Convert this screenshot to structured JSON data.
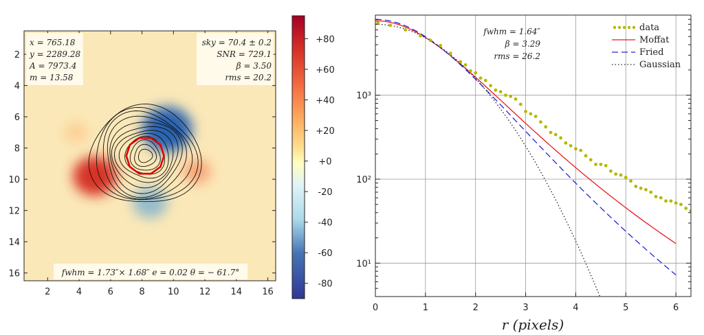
{
  "chart_data": [
    {
      "type": "heatmap",
      "x_ticks": [
        2,
        4,
        6,
        8,
        10,
        12,
        14,
        16
      ],
      "y_ticks": [
        2,
        4,
        6,
        8,
        10,
        12,
        14,
        16
      ],
      "xlim": [
        0.5,
        16.5
      ],
      "ylim": [
        16.5,
        0.5
      ],
      "colorbar": {
        "range": [
          -90,
          95
        ],
        "ticks": [
          80,
          60,
          40,
          20,
          0,
          -20,
          -40,
          -60,
          -80
        ],
        "tick_labels": [
          "+80",
          "+60",
          "+40",
          "+20",
          "+0",
          "-20",
          "-40",
          "-60",
          "-80"
        ],
        "colormap": "RdYlBu_r"
      },
      "residual_features": [
        {
          "x": 5.0,
          "y": 9.8,
          "value": 55
        },
        {
          "x": 9.6,
          "y": 6.8,
          "value": -70
        },
        {
          "x": 11.5,
          "y": 9.5,
          "value": 18
        },
        {
          "x": 8.5,
          "y": 11.5,
          "value": -35
        },
        {
          "x": 3.8,
          "y": 7.0,
          "value": 8
        }
      ],
      "contours": {
        "center_x": 8.2,
        "center_y": 8.5,
        "outer_radius": 3.3,
        "levels": 12,
        "highlight_radius": 1.2
      },
      "annotations": {
        "top_left": [
          "x = 765.18",
          "y = 2289.28",
          "A = 7973.4",
          "m = 13.58"
        ],
        "top_right": [
          "sky = 70.4 ± 0.2",
          "SNR = 729.1",
          "β = 3.50",
          "rms = 20.2"
        ],
        "bottom": "fwhm = 1.73″× 1.68″ e = 0.02  θ = − 61.7°"
      }
    },
    {
      "type": "line",
      "xlabel": "r (pixels)",
      "xlim": [
        0,
        6.3
      ],
      "ylim": [
        4,
        9000
      ],
      "yscale": "log",
      "x_ticks": [
        0,
        1,
        2,
        3,
        4,
        5,
        6
      ],
      "y_ticks": [
        {
          "value": 10,
          "label": "10¹"
        },
        {
          "value": 100,
          "label": "10²"
        },
        {
          "value": 1000,
          "label": "10³"
        }
      ],
      "grid": true,
      "legend_position": "top-right",
      "annotations": [
        "fwhm = 1.64″",
        "β = 3.29",
        "rms = 26.2"
      ],
      "series": [
        {
          "name": "data",
          "style": "points",
          "color": "#b5b800",
          "x": [
            0.05,
            0.3,
            0.6,
            0.9,
            1.1,
            1.3,
            1.5,
            1.7,
            1.8,
            1.9,
            2.0,
            2.1,
            2.2,
            2.3,
            2.4,
            2.5,
            2.6,
            2.7,
            2.8,
            2.9,
            3.0,
            3.1,
            3.2,
            3.3,
            3.4,
            3.5,
            3.6,
            3.7,
            3.8,
            3.9,
            4.0,
            4.1,
            4.2,
            4.3,
            4.4,
            4.5,
            4.6,
            4.7,
            4.8,
            4.9,
            5.0,
            5.1,
            5.2,
            5.3,
            5.4,
            5.5,
            5.6,
            5.7,
            5.8,
            5.9,
            6.0,
            6.1,
            6.2,
            6.3
          ],
          "y": [
            7300,
            6800,
            6000,
            5100,
            4500,
            3900,
            3150,
            2500,
            2300,
            1950,
            1850,
            1600,
            1500,
            1300,
            1150,
            1100,
            1000,
            970,
            900,
            780,
            640,
            600,
            560,
            480,
            420,
            360,
            340,
            310,
            270,
            250,
            230,
            220,
            190,
            170,
            150,
            150,
            145,
            125,
            115,
            112,
            105,
            95,
            82,
            78,
            75,
            70,
            62,
            60,
            55,
            55,
            52,
            50,
            45,
            42
          ]
        },
        {
          "name": "Moffat",
          "style": "solid",
          "color": "#e8191c",
          "fwhm": 2.5,
          "beta": 3.29,
          "amplitude": 7700,
          "x_end": 6.0
        },
        {
          "name": "Fried",
          "style": "dashed",
          "color": "#1f24d8",
          "fwhm": 2.45,
          "beta": 4.2,
          "amplitude": 8000,
          "x_end": 6.0
        },
        {
          "name": "Gaussian",
          "style": "dotted",
          "color": "#222222",
          "sigma": 1.16,
          "amplitude": 7000,
          "x_end": 5.15
        }
      ]
    }
  ]
}
